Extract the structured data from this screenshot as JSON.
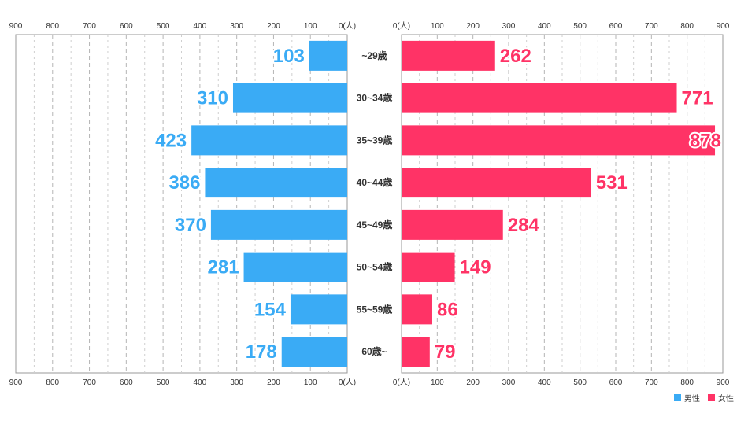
{
  "chart_data": {
    "type": "bar",
    "orientation": "horizontal-butterfly",
    "categories": [
      "~29歳",
      "30~34歳",
      "35~39歳",
      "40~44歳",
      "45~49歳",
      "50~54歳",
      "55~59歳",
      "60歳~"
    ],
    "series": [
      {
        "name": "男性",
        "color": "#3aabf5",
        "side": "left",
        "values": [
          103,
          310,
          423,
          386,
          370,
          281,
          154,
          178
        ]
      },
      {
        "name": "女性",
        "color": "#ff3366",
        "side": "right",
        "values": [
          262,
          771,
          878,
          531,
          284,
          149,
          86,
          79
        ]
      }
    ],
    "ticks": [
      0,
      100,
      200,
      300,
      400,
      500,
      600,
      700,
      800,
      900
    ],
    "zero_label": "0(人)",
    "xlim": [
      0,
      900
    ],
    "grid": true,
    "legend_position": "bottom-right"
  }
}
